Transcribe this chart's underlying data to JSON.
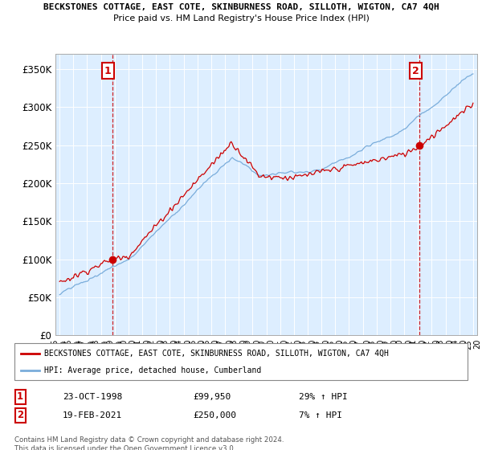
{
  "title1": "BECKSTONES COTTAGE, EAST COTE, SKINBURNESS ROAD, SILLOTH, WIGTON, CA7 4QH",
  "title2": "Price paid vs. HM Land Registry's House Price Index (HPI)",
  "legend_label1": "BECKSTONES COTTAGE, EAST COTE, SKINBURNESS ROAD, SILLOTH, WIGTON, CA7 4QH",
  "legend_label2": "HPI: Average price, detached house, Cumberland",
  "sale1_label": "1",
  "sale1_date": "23-OCT-1998",
  "sale1_price": "£99,950",
  "sale1_hpi": "29% ↑ HPI",
  "sale2_label": "2",
  "sale2_date": "19-FEB-2021",
  "sale2_price": "£250,000",
  "sale2_hpi": "7% ↑ HPI",
  "footer": "Contains HM Land Registry data © Crown copyright and database right 2024.\nThis data is licensed under the Open Government Licence v3.0.",
  "sale_color": "#cc0000",
  "hpi_color": "#7aaddb",
  "vline_color": "#cc0000",
  "ylim": [
    0,
    370000
  ],
  "yticks": [
    0,
    50000,
    100000,
    150000,
    200000,
    250000,
    300000,
    350000
  ],
  "ytick_labels": [
    "£0",
    "£50K",
    "£100K",
    "£150K",
    "£200K",
    "£250K",
    "£300K",
    "£350K"
  ],
  "sale1_x": 1998.81,
  "sale1_y": 99950,
  "sale2_x": 2021.13,
  "sale2_y": 250000,
  "xlim_start": 1995.0,
  "xlim_end": 2025.0,
  "background_color": "#ddeeff",
  "plot_bg_color": "#ddeeff",
  "grid_color": "#ffffff"
}
